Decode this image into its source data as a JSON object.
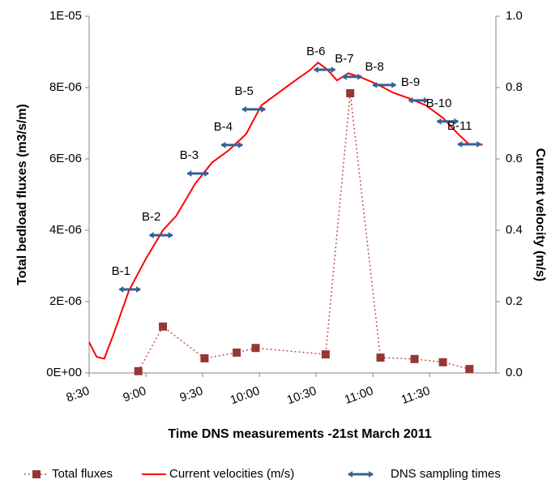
{
  "chart_data": {
    "type": "line",
    "x_title": "Time DNS measurements -21st March 2011",
    "y_title": "Total bedload fluxes (m3/s/m)",
    "y2_title": "Current velocity (m/s)",
    "xlim": [
      510,
      725
    ],
    "xticks": [
      {
        "value": 510,
        "label": "8:30"
      },
      {
        "value": 540,
        "label": "9:00"
      },
      {
        "value": 570,
        "label": "9:30"
      },
      {
        "value": 600,
        "label": "10:00"
      },
      {
        "value": 630,
        "label": "10:30"
      },
      {
        "value": 660,
        "label": "11:00"
      },
      {
        "value": 690,
        "label": "11:30"
      }
    ],
    "ylim": [
      0,
      1e-05
    ],
    "yticks": [
      {
        "value": 0,
        "label": "0E+00"
      },
      {
        "value": 2e-06,
        "label": "2E-06"
      },
      {
        "value": 4e-06,
        "label": "4E-06"
      },
      {
        "value": 6e-06,
        "label": "6E-06"
      },
      {
        "value": 8e-06,
        "label": "8E-06"
      },
      {
        "value": 1e-05,
        "label": "1E-05"
      }
    ],
    "y2lim": [
      0,
      1.0
    ],
    "y2ticks": [
      {
        "value": 0,
        "label": "0.0"
      },
      {
        "value": 0.2,
        "label": "0.2"
      },
      {
        "value": 0.4,
        "label": "0.4"
      },
      {
        "value": 0.6,
        "label": "0.6"
      },
      {
        "value": 0.8,
        "label": "0.8"
      },
      {
        "value": 1.0,
        "label": "1.0"
      }
    ],
    "series": [
      {
        "name": "Total fluxes",
        "color": "#953735",
        "x": [
          536,
          549,
          571,
          588,
          598,
          635,
          648,
          664,
          682,
          697,
          711
        ],
        "values": [
          5e-08,
          1.3e-06,
          4.1e-07,
          5.7e-07,
          7e-07,
          5.2e-07,
          7.84e-06,
          4.3e-07,
          3.9e-07,
          3e-07,
          1.1e-07
        ]
      },
      {
        "name": "Current velocities (m/s)",
        "color": "#ff0000",
        "axis": "y2",
        "x": [
          510,
          514,
          518,
          523,
          531,
          540,
          549,
          556,
          566,
          575,
          584,
          593,
          601,
          610,
          619,
          627,
          631,
          636,
          641,
          647,
          653,
          662,
          671,
          679,
          688,
          697,
          705,
          711,
          718
        ],
        "values": [
          0.086,
          0.045,
          0.04,
          0.11,
          0.23,
          0.32,
          0.4,
          0.44,
          0.53,
          0.59,
          0.625,
          0.67,
          0.75,
          0.785,
          0.82,
          0.85,
          0.87,
          0.85,
          0.82,
          0.84,
          0.83,
          0.81,
          0.785,
          0.77,
          0.75,
          0.715,
          0.67,
          0.64,
          0.64
        ]
      },
      {
        "name": "DNS sampling times",
        "color": "#376092",
        "axis": "y2",
        "labels": [
          "B-1",
          "B-2",
          "B-3",
          "B-4",
          "B-5",
          "B-6",
          "B-7",
          "B-8",
          "B-9",
          "B-10",
          "B-11"
        ],
        "x_start": [
          526,
          542,
          562,
          580,
          591,
          629,
          644,
          660,
          679,
          694,
          705
        ],
        "x_end": [
          537,
          554,
          573,
          591,
          603,
          640,
          654,
          672,
          689,
          705,
          717
        ],
        "values": [
          0.234,
          0.386,
          0.559,
          0.639,
          0.739,
          0.85,
          0.83,
          0.807,
          0.764,
          0.705,
          0.641
        ]
      }
    ]
  }
}
